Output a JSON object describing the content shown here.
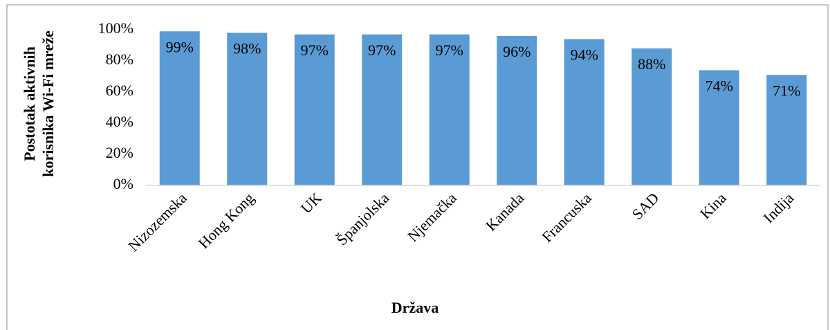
{
  "chart_data": {
    "type": "bar",
    "ylabel": [
      "Postotak aktivnih",
      "korisnika Wi-Fi mreže"
    ],
    "xlabel": "Država",
    "categories": [
      "Nizozemska",
      "Hong Kong",
      "UK",
      "Španjolska",
      "Njemačka",
      "Kanada",
      "Francuska",
      "SAD",
      "Kina",
      "Indija"
    ],
    "values": [
      99,
      98,
      97,
      97,
      97,
      96,
      94,
      88,
      74,
      71
    ],
    "value_labels": [
      "99%",
      "98%",
      "97%",
      "97%",
      "97%",
      "96%",
      "94%",
      "88%",
      "74%",
      "71%"
    ],
    "color": "#5b9bd5",
    "ylim": [
      0,
      100
    ],
    "yticks": [
      {
        "value": 0,
        "label": "0%"
      },
      {
        "value": 20,
        "label": "20%"
      },
      {
        "value": 40,
        "label": "40%"
      },
      {
        "value": 60,
        "label": "60%"
      },
      {
        "value": 80,
        "label": "80%"
      },
      {
        "value": 100,
        "label": "100%"
      }
    ],
    "grid": false
  }
}
